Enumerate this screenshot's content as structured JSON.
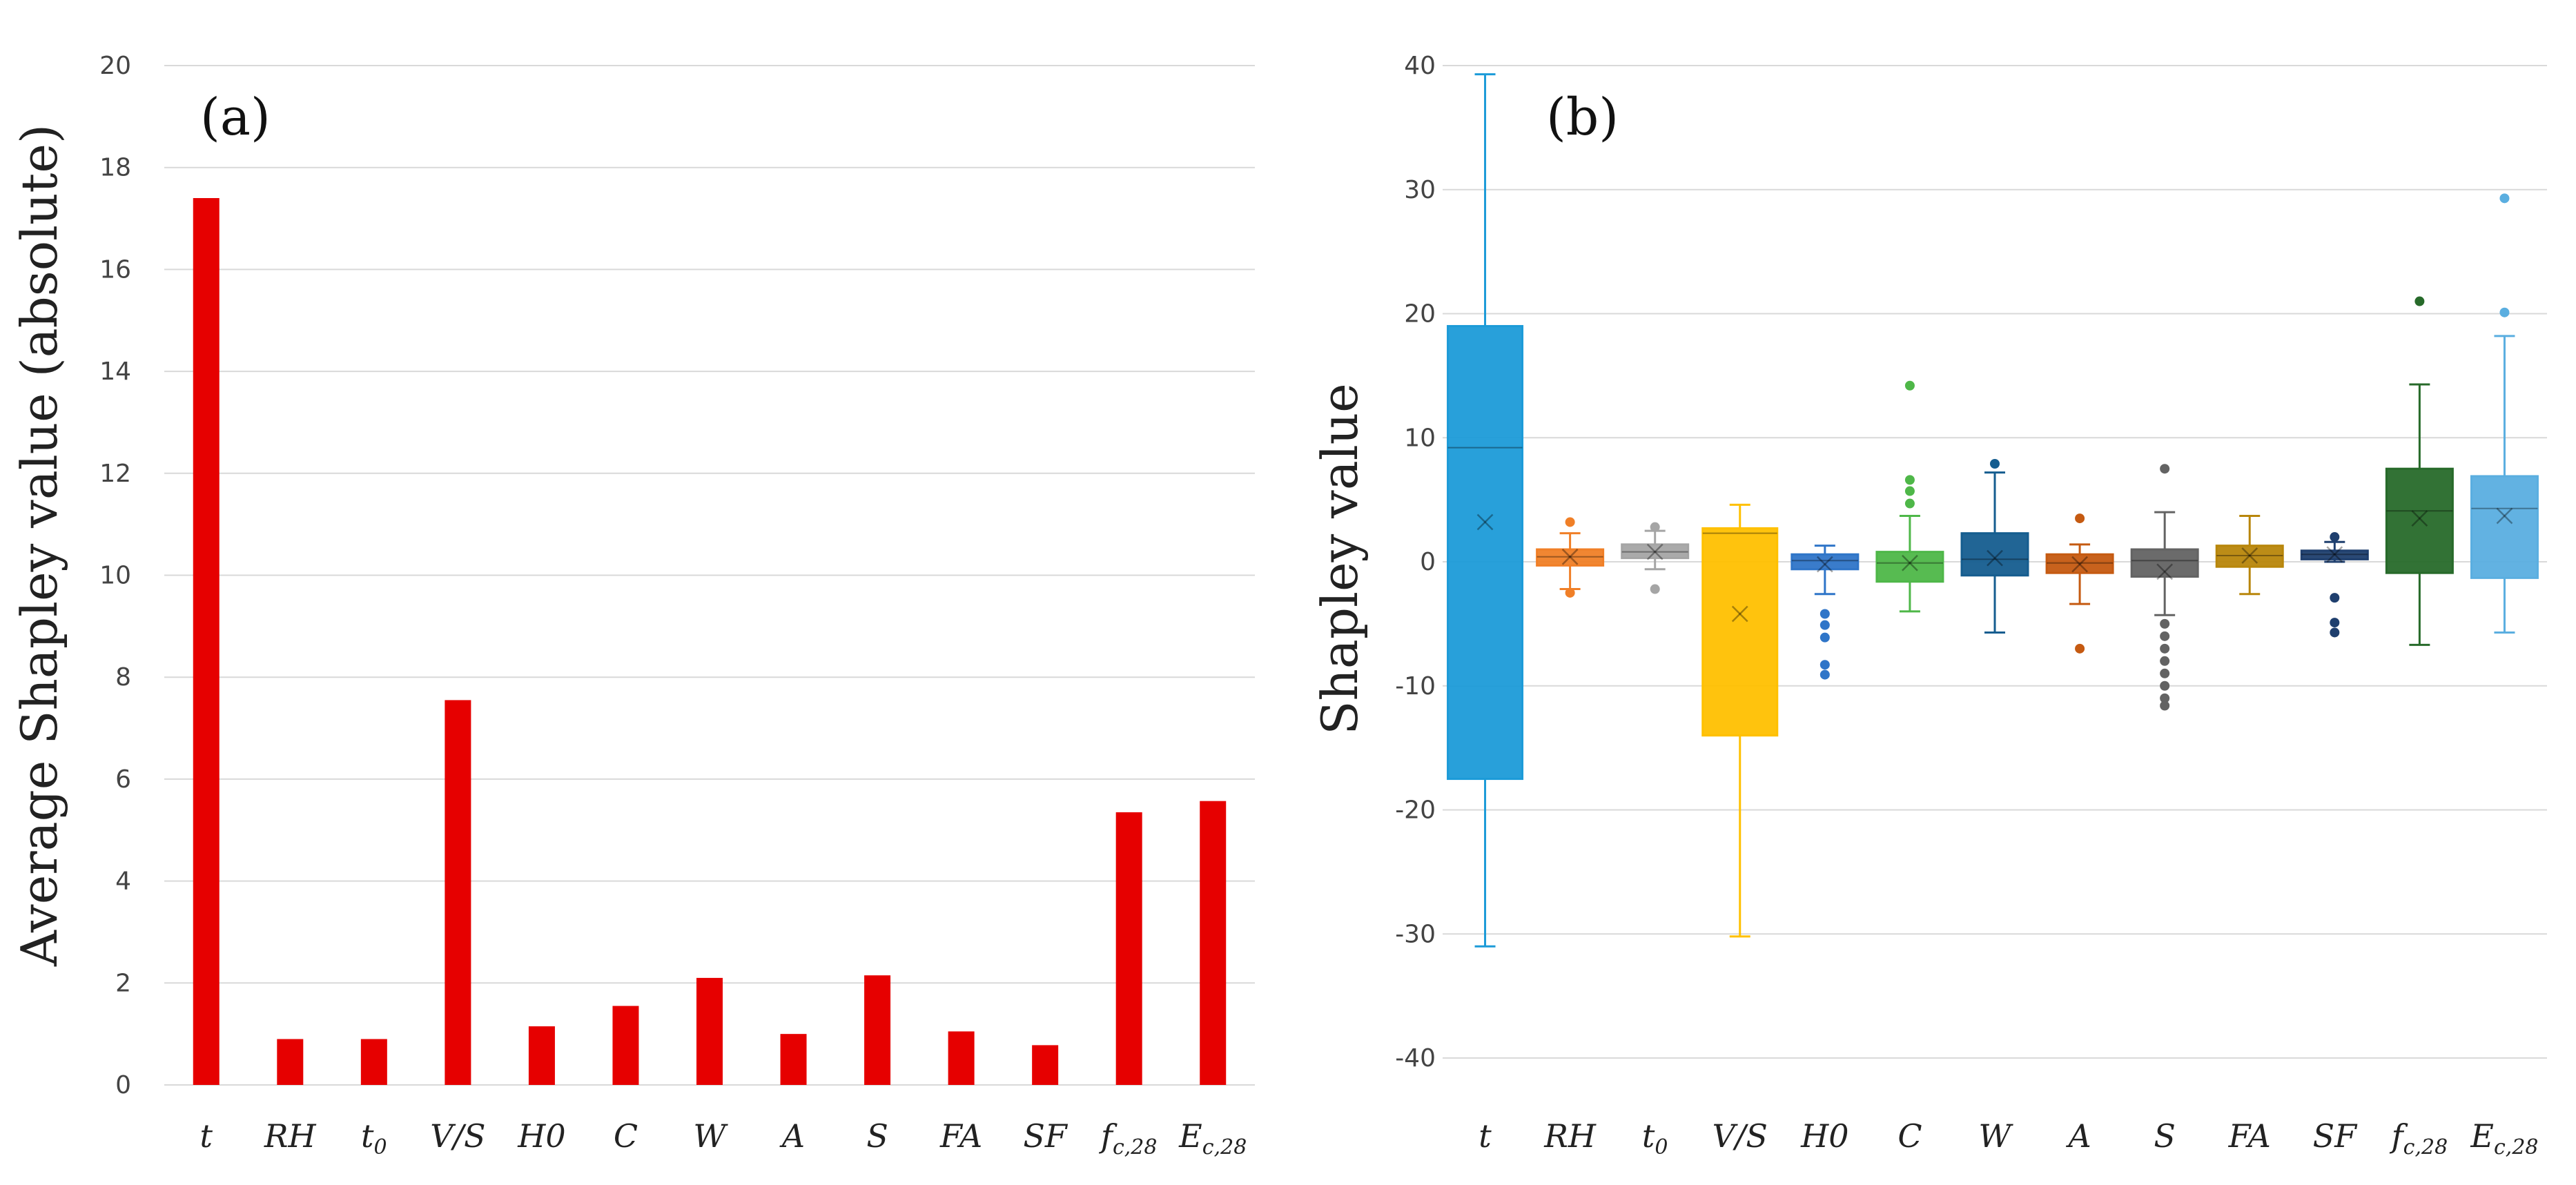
{
  "chart_data": [
    {
      "type": "bar",
      "panel_label": "(a)",
      "ylabel": "Average Shapley value (absolute)",
      "ylim": [
        0,
        20
      ],
      "yticks": [
        0,
        2,
        4,
        6,
        8,
        10,
        12,
        14,
        16,
        18,
        20
      ],
      "grid": true,
      "bar_color": "#e60000",
      "categories": [
        {
          "main": "t",
          "sub": ""
        },
        {
          "main": "RH",
          "sub": ""
        },
        {
          "main": "t",
          "sub": "0"
        },
        {
          "main": "V/S",
          "sub": ""
        },
        {
          "main": "H0",
          "sub": ""
        },
        {
          "main": "C",
          "sub": ""
        },
        {
          "main": "W",
          "sub": ""
        },
        {
          "main": "A",
          "sub": ""
        },
        {
          "main": "S",
          "sub": ""
        },
        {
          "main": "FA",
          "sub": ""
        },
        {
          "main": "SF",
          "sub": ""
        },
        {
          "main": "f",
          "sub": "c,28"
        },
        {
          "main": "E",
          "sub": "c,28"
        }
      ],
      "values": [
        17.4,
        0.9,
        0.9,
        7.55,
        1.15,
        1.55,
        2.1,
        1.0,
        2.15,
        1.05,
        0.78,
        5.35,
        5.57
      ]
    },
    {
      "type": "box",
      "panel_label": "(b)",
      "ylabel": "Shapley value",
      "ylim": [
        -40,
        40
      ],
      "yticks": [
        -40,
        -30,
        -20,
        -10,
        0,
        10,
        20,
        30,
        40
      ],
      "grid": true,
      "categories": [
        {
          "main": "t",
          "sub": ""
        },
        {
          "main": "RH",
          "sub": ""
        },
        {
          "main": "t",
          "sub": "0"
        },
        {
          "main": "V/S",
          "sub": ""
        },
        {
          "main": "H0",
          "sub": ""
        },
        {
          "main": "C",
          "sub": ""
        },
        {
          "main": "W",
          "sub": ""
        },
        {
          "main": "A",
          "sub": ""
        },
        {
          "main": "S",
          "sub": ""
        },
        {
          "main": "FA",
          "sub": ""
        },
        {
          "main": "SF",
          "sub": ""
        },
        {
          "main": "f",
          "sub": "c,28"
        },
        {
          "main": "E",
          "sub": "c,28"
        }
      ],
      "boxes": [
        {
          "color": "#1c9bd8",
          "whisker_low": -31,
          "q1": -17.5,
          "median": 9.2,
          "q3": 19,
          "whisker_high": 39.3,
          "mean": 3.2,
          "outliers": []
        },
        {
          "color": "#f07f27",
          "whisker_low": -2.2,
          "q1": -0.3,
          "median": 0.4,
          "q3": 1.0,
          "whisker_high": 2.3,
          "mean": 0.4,
          "outliers": [
            -2.5,
            3.2
          ]
        },
        {
          "color": "#a5a5a5",
          "whisker_low": -0.6,
          "q1": 0.3,
          "median": 0.8,
          "q3": 1.4,
          "whisker_high": 2.5,
          "mean": 0.8,
          "outliers": [
            -2.2,
            2.8
          ]
        },
        {
          "color": "#ffc000",
          "whisker_low": -30.2,
          "q1": -14,
          "median": 2.3,
          "q3": 2.7,
          "whisker_high": 4.6,
          "mean": -4.2,
          "outliers": []
        },
        {
          "color": "#2f75c8",
          "whisker_low": -2.6,
          "q1": -0.6,
          "median": 0.1,
          "q3": 0.6,
          "whisker_high": 1.3,
          "mean": -0.2,
          "outliers": [
            -4.2,
            -5.1,
            -6.1,
            -8.3,
            -9.1
          ]
        },
        {
          "color": "#4eb748",
          "whisker_low": -4.0,
          "q1": -1.6,
          "median": -0.1,
          "q3": 0.8,
          "whisker_high": 3.7,
          "mean": -0.1,
          "outliers": [
            4.7,
            5.7,
            6.6,
            14.2
          ]
        },
        {
          "color": "#155d8f",
          "whisker_low": -5.7,
          "q1": -1.1,
          "median": 0.2,
          "q3": 2.3,
          "whisker_high": 7.2,
          "mean": 0.3,
          "outliers": [
            7.9
          ]
        },
        {
          "color": "#c55a11",
          "whisker_low": -3.4,
          "q1": -0.9,
          "median": -0.1,
          "q3": 0.6,
          "whisker_high": 1.4,
          "mean": -0.2,
          "outliers": [
            -7.0,
            3.5
          ]
        },
        {
          "color": "#636363",
          "whisker_low": -4.3,
          "q1": -1.2,
          "median": 0.1,
          "q3": 1.0,
          "whisker_high": 4.0,
          "mean": -0.8,
          "outliers": [
            -5.0,
            -6.0,
            -7.0,
            -8.0,
            -9.0,
            -10.0,
            -11.0,
            -11.6,
            7.5
          ]
        },
        {
          "color": "#b8860b",
          "whisker_low": -2.6,
          "q1": -0.4,
          "median": 0.5,
          "q3": 1.3,
          "whisker_high": 3.7,
          "mean": 0.5,
          "outliers": []
        },
        {
          "color": "#1f3f6e",
          "whisker_low": 0.0,
          "q1": 0.2,
          "median": 0.6,
          "q3": 0.9,
          "whisker_high": 1.6,
          "mean": 0.6,
          "outliers": [
            -2.9,
            -4.9,
            -5.7,
            2.0
          ]
        },
        {
          "color": "#276a2a",
          "whisker_low": -6.7,
          "q1": -0.9,
          "median": 4.1,
          "q3": 7.5,
          "whisker_high": 14.3,
          "mean": 3.5,
          "outliers": [
            21.0
          ]
        },
        {
          "color": "#5aaee0",
          "whisker_low": -5.7,
          "q1": -1.3,
          "median": 4.3,
          "q3": 6.9,
          "whisker_high": 18.2,
          "mean": 3.7,
          "outliers": [
            20.1,
            29.3
          ]
        }
      ]
    }
  ]
}
